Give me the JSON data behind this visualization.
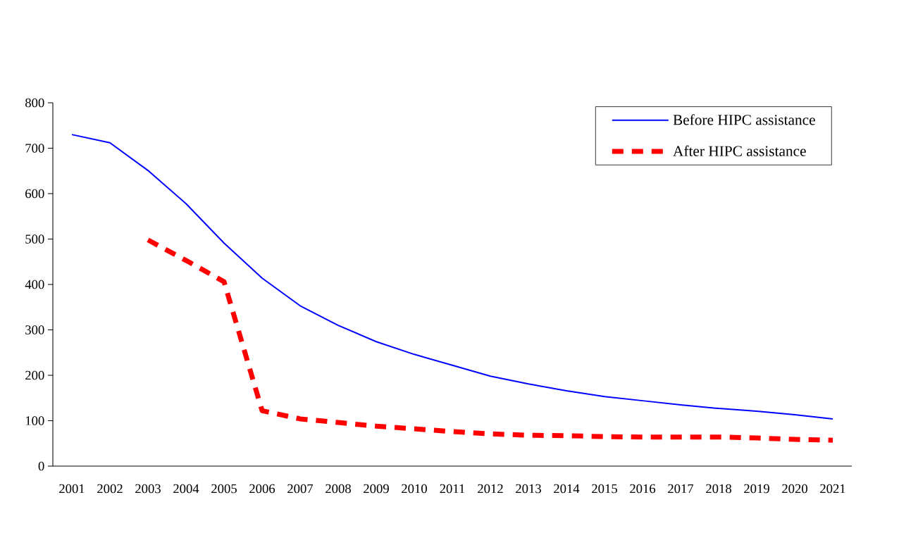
{
  "chart_data": {
    "type": "line",
    "categories": [
      "2001",
      "2002",
      "2003",
      "2004",
      "2005",
      "2006",
      "2007",
      "2008",
      "2009",
      "2010",
      "2011",
      "2012",
      "2013",
      "2014",
      "2015",
      "2016",
      "2017",
      "2018",
      "2019",
      "2020",
      "2021"
    ],
    "series": [
      {
        "name": "Before HIPC assistance",
        "color": "#0000ff",
        "line_style": "solid",
        "values": [
          730,
          712,
          651,
          578,
          491,
          414,
          353,
          310,
          274,
          246,
          222,
          198,
          181,
          166,
          153,
          144,
          135,
          127,
          121,
          113,
          104
        ]
      },
      {
        "name": "After HIPC assistance",
        "color": "#ff0000",
        "line_style": "dashed",
        "values": [
          null,
          null,
          498,
          453,
          406,
          122,
          104,
          96,
          88,
          82,
          76,
          71,
          68,
          67,
          65,
          64,
          64,
          64,
          62,
          59,
          57
        ]
      }
    ],
    "ylim": [
      0,
      800
    ],
    "yticks": [
      0,
      100,
      200,
      300,
      400,
      500,
      600,
      700,
      800
    ],
    "legend": "top right"
  }
}
